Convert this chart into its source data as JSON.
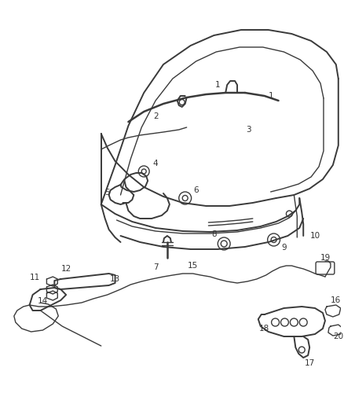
{
  "title": "",
  "bg_color": "#ffffff",
  "line_color": "#3a3a3a",
  "label_color": "#333333",
  "fig_width": 4.38,
  "fig_height": 5.33,
  "dpi": 100
}
